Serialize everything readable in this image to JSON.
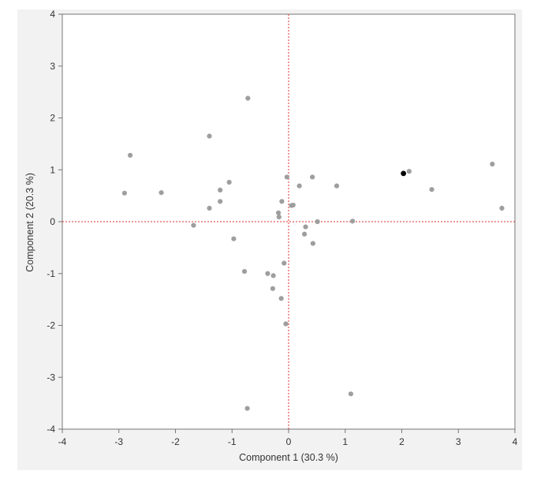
{
  "chart_data": {
    "type": "scatter",
    "title": "",
    "xlabel": "Component 1  (30.3 %)",
    "ylabel": "Component 2  (20.3 %)",
    "xlim": [
      -4,
      4
    ],
    "ylim": [
      -4,
      4
    ],
    "xticks": [
      -4,
      -3,
      -2,
      -1,
      0,
      1,
      2,
      3,
      4
    ],
    "yticks": [
      -4,
      -3,
      -2,
      -1,
      0,
      1,
      2,
      3,
      4
    ],
    "reference_lines": {
      "x": 0,
      "y": 0,
      "style": "dotted",
      "color": "#e03030"
    },
    "grid": false,
    "colors": {
      "points": "#9e9e9e",
      "highlight": "#000000",
      "panel_background": "#f2f2f2",
      "plot_background": "#ffffff"
    },
    "series": [
      {
        "points": [
          [
            -2.9,
            0.55
          ],
          [
            -2.8,
            1.28
          ],
          [
            -2.25,
            0.56
          ],
          [
            -1.68,
            -0.07
          ],
          [
            -1.4,
            1.65
          ],
          [
            -1.4,
            0.26
          ],
          [
            -1.21,
            0.61
          ],
          [
            -1.21,
            0.39
          ],
          [
            -1.05,
            0.76
          ],
          [
            -0.97,
            -0.33
          ],
          [
            -0.78,
            -0.96
          ],
          [
            -0.72,
            2.38
          ],
          [
            -0.73,
            -3.6
          ],
          [
            -0.37,
            -1.0
          ],
          [
            -0.28,
            -1.29
          ],
          [
            -0.27,
            -1.04
          ],
          [
            -0.18,
            0.17
          ],
          [
            -0.17,
            0.09
          ],
          [
            -0.13,
            -1.48
          ],
          [
            -0.12,
            0.39
          ],
          [
            -0.08,
            -0.8
          ],
          [
            -0.05,
            -1.97
          ],
          [
            -0.03,
            0.86
          ],
          [
            0.05,
            0.31
          ],
          [
            0.08,
            0.32
          ],
          [
            0.19,
            0.69
          ],
          [
            0.28,
            -0.24
          ],
          [
            0.3,
            -0.1
          ],
          [
            0.42,
            0.86
          ],
          [
            0.43,
            -0.42
          ],
          [
            0.51,
            0.0
          ],
          [
            0.85,
            0.69
          ],
          [
            1.1,
            -3.32
          ],
          [
            1.13,
            0.01
          ],
          [
            2.13,
            0.97
          ],
          [
            2.53,
            0.62
          ],
          [
            3.6,
            1.11
          ],
          [
            3.77,
            0.26
          ]
        ]
      },
      {
        "highlight": true,
        "points": [
          [
            2.03,
            0.93
          ]
        ]
      }
    ]
  }
}
